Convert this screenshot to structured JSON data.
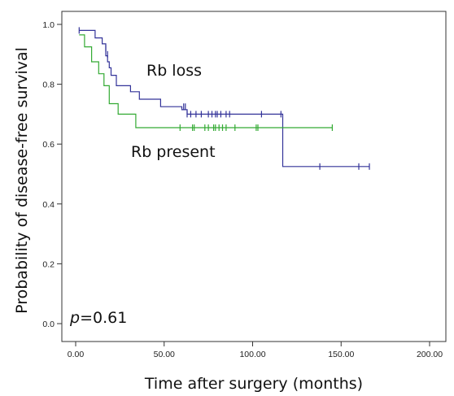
{
  "chart_data": {
    "type": "line",
    "title": "",
    "xlabel": "Time after surgery (months)",
    "ylabel": "Probability of disease-free survival",
    "xlim": [
      0,
      200
    ],
    "ylim": [
      0,
      1.0
    ],
    "x_ticks": [
      "0.00",
      "50.00",
      "100.00",
      "150.00",
      "200.00"
    ],
    "y_ticks": [
      "0.0",
      "0.2",
      "0.4",
      "0.6",
      "0.8",
      "1.0"
    ],
    "x_tick_values": [
      0,
      50,
      100,
      150,
      200
    ],
    "y_tick_values": [
      0,
      0.2,
      0.4,
      0.6,
      0.8,
      1.0
    ],
    "grid": false,
    "annotations": [
      {
        "text_parts": [
          {
            "text": "p",
            "italic": true
          },
          {
            "text": "=0.61",
            "italic": false
          }
        ]
      }
    ],
    "series": [
      {
        "name": "Rb loss",
        "color": "#333399",
        "step_points": [
          [
            2,
            0.98
          ],
          [
            11,
            0.98
          ],
          [
            11,
            0.955
          ],
          [
            15,
            0.955
          ],
          [
            15,
            0.935
          ],
          [
            17,
            0.935
          ],
          [
            17,
            0.895
          ],
          [
            18,
            0.895
          ],
          [
            18,
            0.875
          ],
          [
            19,
            0.875
          ],
          [
            19,
            0.855
          ],
          [
            20,
            0.855
          ],
          [
            20,
            0.83
          ],
          [
            23,
            0.83
          ],
          [
            23,
            0.795
          ],
          [
            31,
            0.795
          ],
          [
            31,
            0.775
          ],
          [
            36,
            0.775
          ],
          [
            36,
            0.75
          ],
          [
            48,
            0.75
          ],
          [
            48,
            0.725
          ],
          [
            60,
            0.725
          ],
          [
            60,
            0.715
          ],
          [
            63,
            0.715
          ],
          [
            63,
            0.7
          ],
          [
            117,
            0.7
          ],
          [
            117,
            0.525
          ],
          [
            166,
            0.525
          ]
        ],
        "censor_x": [
          2,
          17,
          18,
          61,
          62,
          63,
          65,
          68,
          71,
          75,
          77,
          79,
          80,
          82,
          85,
          87,
          105,
          116,
          138,
          160,
          166
        ],
        "censor_y": [
          0.98,
          0.92,
          0.9,
          0.725,
          0.725,
          0.7,
          0.7,
          0.7,
          0.7,
          0.7,
          0.7,
          0.7,
          0.7,
          0.7,
          0.7,
          0.7,
          0.7,
          0.7,
          0.525,
          0.525,
          0.525
        ]
      },
      {
        "name": "Rb present",
        "color": "#33aa33",
        "step_points": [
          [
            2,
            0.965
          ],
          [
            5,
            0.965
          ],
          [
            5,
            0.925
          ],
          [
            9,
            0.925
          ],
          [
            9,
            0.875
          ],
          [
            13,
            0.875
          ],
          [
            13,
            0.835
          ],
          [
            16,
            0.835
          ],
          [
            16,
            0.795
          ],
          [
            19,
            0.795
          ],
          [
            19,
            0.735
          ],
          [
            24,
            0.735
          ],
          [
            24,
            0.7
          ],
          [
            34,
            0.7
          ],
          [
            34,
            0.655
          ],
          [
            145,
            0.655
          ]
        ],
        "censor_x": [
          59,
          66,
          67,
          73,
          75,
          78,
          79,
          81,
          83,
          85,
          90,
          102,
          103,
          145
        ],
        "censor_y": [
          0.655,
          0.655,
          0.655,
          0.655,
          0.655,
          0.655,
          0.655,
          0.655,
          0.655,
          0.655,
          0.655,
          0.655,
          0.655,
          0.655
        ]
      }
    ]
  }
}
